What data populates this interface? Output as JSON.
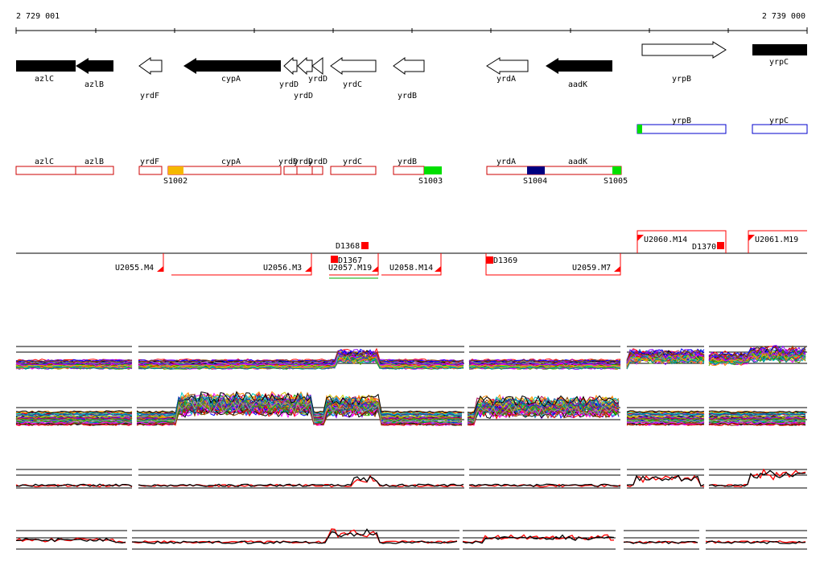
{
  "coords": {
    "start": "2 729 001",
    "end": "2 739 000"
  },
  "genes": [
    {
      "label": "azlC",
      "dir": "left",
      "filled": true
    },
    {
      "label": "azlB",
      "dir": "left",
      "filled": true
    },
    {
      "label": "yrdF",
      "dir": "left",
      "filled": false
    },
    {
      "label": "cypA",
      "dir": "left",
      "filled": true
    },
    {
      "label": "yrdD",
      "dir": "left",
      "filled": false
    },
    {
      "label": "yrdD",
      "dir": "left",
      "filled": false
    },
    {
      "label": "yrdD",
      "dir": "left",
      "filled": false
    },
    {
      "label": "yrdC",
      "dir": "left",
      "filled": false
    },
    {
      "label": "yrdB",
      "dir": "left",
      "filled": false
    },
    {
      "label": "yrdA",
      "dir": "left",
      "filled": false
    },
    {
      "label": "aadK",
      "dir": "left",
      "filled": true
    },
    {
      "label": "yrpB",
      "dir": "right",
      "filled": false
    },
    {
      "label": "yrpC",
      "dir": "right",
      "filled": true
    }
  ],
  "forward_boxes": [
    {
      "label": "yrpB"
    },
    {
      "label": "yrpC"
    }
  ],
  "reverse_boxes": [
    {
      "label": "azlC"
    },
    {
      "label": "azlB"
    },
    {
      "label": "yrdF"
    },
    {
      "label": "cypA"
    },
    {
      "label": "yrdD"
    },
    {
      "label": "yrdD"
    },
    {
      "label": "yrdD"
    },
    {
      "label": "yrdC"
    },
    {
      "label": "yrdB"
    },
    {
      "label": "yrdA"
    },
    {
      "label": "aadK"
    }
  ],
  "sites": [
    {
      "label": "S1002",
      "color": "#f5b800"
    },
    {
      "label": "S1003",
      "color": "#00e000"
    },
    {
      "label": "S1004",
      "color": "#000080"
    },
    {
      "label": "S1005",
      "color": "#00e000"
    }
  ],
  "transcripts_top": [
    {
      "label": "U2060.M14"
    },
    {
      "label": "U2061.M19"
    }
  ],
  "transcripts_bottom": [
    {
      "label": "U2055.M4"
    },
    {
      "label": "U2056.M3"
    },
    {
      "label": "U2057.M19"
    },
    {
      "label": "U2058.M14"
    },
    {
      "label": "U2059.M7"
    }
  ],
  "markers": [
    {
      "label": "D1368"
    },
    {
      "label": "D1367"
    },
    {
      "label": "D1369"
    },
    {
      "label": "D1370"
    }
  ],
  "colors": {
    "accent": "#ff0000",
    "box_outline": "#cc0000",
    "forward_outline": "#0000cc",
    "site_green": "#00e000"
  }
}
